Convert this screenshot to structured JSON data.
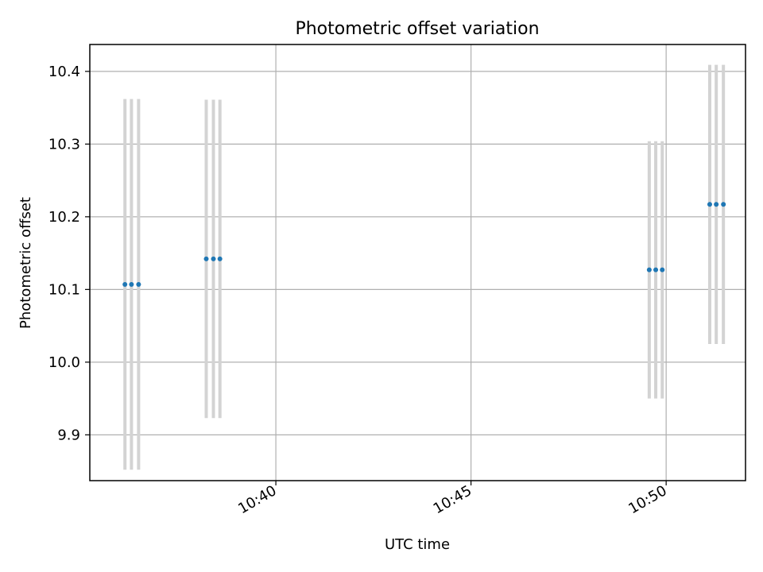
{
  "chart_data": {
    "type": "scatter",
    "title": "Photometric offset variation",
    "xlabel": "UTC time",
    "ylabel": "Photometric offset",
    "x_tick_labels": [
      "10:40",
      "10:45",
      "10:50"
    ],
    "y_tick_labels": [
      "9.9",
      "10.0",
      "10.1",
      "10.2",
      "10.3",
      "10.4"
    ],
    "y_ticks": [
      9.9,
      10.0,
      10.1,
      10.2,
      10.3,
      10.4
    ],
    "xlim": [
      "10:35:14",
      "10:52:02"
    ],
    "ylim": [
      9.837,
      10.437
    ],
    "grid": true,
    "marker_color": "#1f77b4",
    "errorbar_color": "#d3d3d3",
    "points": [
      {
        "time": "10:36:08",
        "y": 10.107,
        "yerr": 0.255
      },
      {
        "time": "10:36:18",
        "y": 10.107,
        "yerr": 0.255
      },
      {
        "time": "10:36:29",
        "y": 10.107,
        "yerr": 0.255
      },
      {
        "time": "10:38:13",
        "y": 10.142,
        "yerr": 0.219
      },
      {
        "time": "10:38:24",
        "y": 10.142,
        "yerr": 0.219
      },
      {
        "time": "10:38:34",
        "y": 10.142,
        "yerr": 0.219
      },
      {
        "time": "10:49:34",
        "y": 10.127,
        "yerr": 0.177
      },
      {
        "time": "10:49:44",
        "y": 10.127,
        "yerr": 0.177
      },
      {
        "time": "10:49:54",
        "y": 10.127,
        "yerr": 0.177
      },
      {
        "time": "10:51:07",
        "y": 10.217,
        "yerr": 0.192
      },
      {
        "time": "10:51:17",
        "y": 10.217,
        "yerr": 0.192
      },
      {
        "time": "10:51:28",
        "y": 10.217,
        "yerr": 0.192
      }
    ]
  }
}
